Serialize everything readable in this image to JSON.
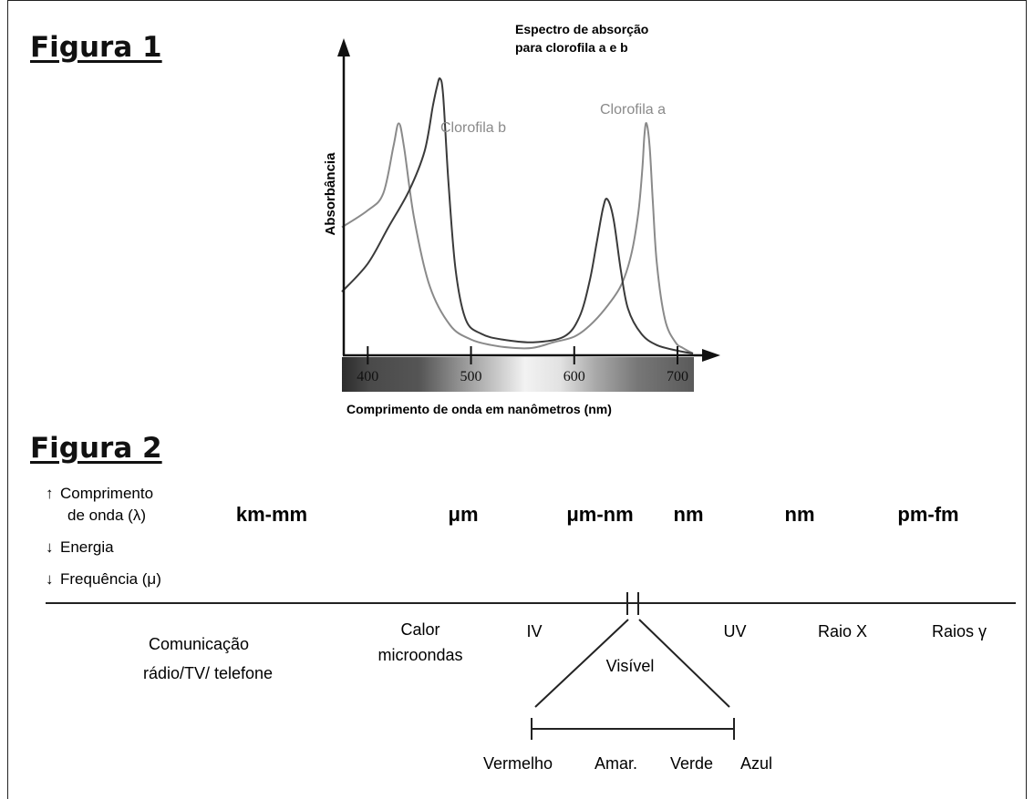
{
  "figure1": {
    "heading": "Figura 1",
    "title_line1": "Espectro de absorção",
    "title_line2": "para clorofila a e b",
    "y_axis_label": "Absorbância",
    "x_axis_label": "Comprimento de onda em nanômetros (nm)",
    "series_labels": {
      "chl_b": "Clorofila b",
      "chl_a": "Clorofila a"
    },
    "colors": {
      "chl_a": "#8a8a8a",
      "chl_b": "#3a3a3a"
    }
  },
  "chart_data": {
    "type": "line",
    "title": "Espectro de absorção para clorofila a e b",
    "xlabel": "Comprimento de onda em nanômetros (nm)",
    "ylabel": "Absorbância",
    "xlim": [
      375,
      715
    ],
    "ylim": [
      0,
      1
    ],
    "x_ticks": [
      "400",
      "500",
      "600",
      "700"
    ],
    "grid": false,
    "series": [
      {
        "name": "Clorofila a",
        "x": [
          375,
          400,
          415,
          425,
          430,
          435,
          445,
          460,
          480,
          500,
          520,
          540,
          560,
          580,
          600,
          615,
          630,
          645,
          655,
          662,
          666,
          668,
          670,
          673,
          676,
          680,
          688,
          698,
          705,
          715
        ],
        "y": [
          0.45,
          0.51,
          0.57,
          0.74,
          0.82,
          0.74,
          0.48,
          0.24,
          0.1,
          0.05,
          0.03,
          0.02,
          0.02,
          0.04,
          0.06,
          0.1,
          0.16,
          0.24,
          0.35,
          0.5,
          0.66,
          0.78,
          0.82,
          0.74,
          0.55,
          0.32,
          0.12,
          0.04,
          0.02,
          0.0
        ]
      },
      {
        "name": "Clorofila b",
        "x": [
          375,
          400,
          420,
          440,
          455,
          463,
          467,
          470,
          473,
          478,
          485,
          495,
          510,
          530,
          560,
          590,
          605,
          615,
          622,
          628,
          632,
          638,
          645,
          652,
          665,
          680,
          700,
          715
        ],
        "y": [
          0.22,
          0.32,
          0.45,
          0.58,
          0.72,
          0.88,
          0.95,
          0.98,
          0.92,
          0.62,
          0.3,
          0.12,
          0.07,
          0.05,
          0.04,
          0.06,
          0.13,
          0.26,
          0.4,
          0.52,
          0.55,
          0.48,
          0.3,
          0.16,
          0.07,
          0.03,
          0.01,
          0.0
        ]
      }
    ]
  },
  "figure2": {
    "heading": "Figura 2",
    "legend": {
      "wavelength_line1": "Comprimento",
      "wavelength_line2": "de onda (λ)",
      "energy": "Energia",
      "frequency": "Frequência (μ)",
      "arrow_up": "↑",
      "arrow_down": "↓"
    },
    "units": [
      "km-mm",
      "μm",
      "μm-nm",
      "nm",
      "nm",
      "pm-fm"
    ],
    "regions": {
      "radio_line1": "Comunicação",
      "radio_line2": "rádio/TV/ telefone",
      "heat_line1": "Calor",
      "heat_line2": "microondas",
      "ir": "IV",
      "visible": "Visível",
      "uv": "UV",
      "xray": "Raio X",
      "gamma": "Raios γ"
    },
    "visible_colors": {
      "red": "Vermelho",
      "yellow": "Amar.",
      "green": "Verde",
      "blue": "Azul"
    }
  }
}
